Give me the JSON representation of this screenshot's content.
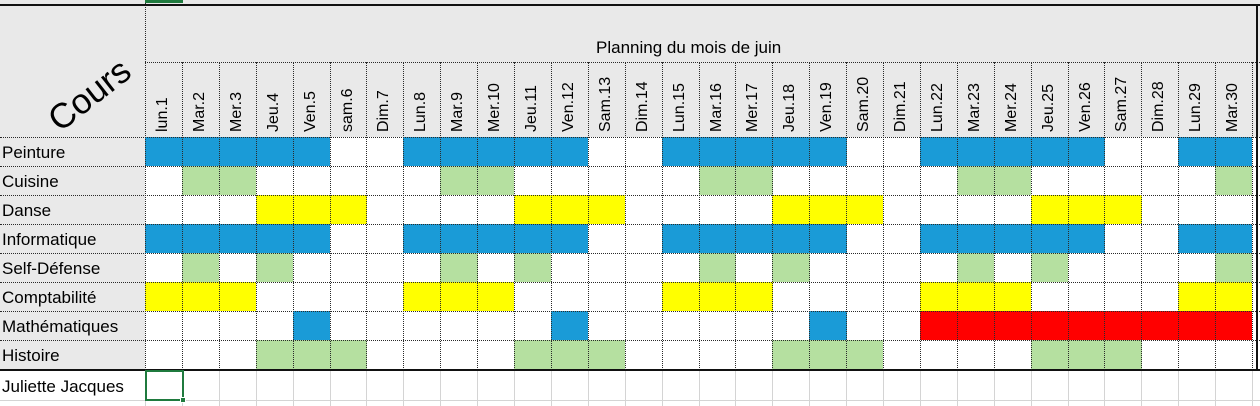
{
  "sheet": {
    "corner_label": "Cours",
    "planning_title": "Planning du mois de juin",
    "footer_name": "Juliette Jacques",
    "days": [
      "lun.1",
      "Mar.2",
      "Mer.3",
      "Jeu.4",
      "Ven.5",
      "sam.6",
      "Dim.7",
      "Lun.8",
      "Mar.9",
      "Mer.10",
      "Jeu.11",
      "Ven.12",
      "Sam.13",
      "Dim.14",
      "Lun.15",
      "Mar.16",
      "Mer.17",
      "Jeu.18",
      "Ven.19",
      "Sam.20",
      "Dim.21",
      "Lun.22",
      "Mar.23",
      "Mer.24",
      "Jeu.25",
      "Ven.26",
      "Sam.27",
      "Dim.28",
      "Lun.29",
      "Mar.30"
    ],
    "colors": {
      "B": "#1a9bd7",
      "G": "#b5e0a0",
      "Y": "#ffff00",
      "R": "#ff0000",
      "_": "#ffffff"
    },
    "rows": [
      {
        "name": "Peinture",
        "fill": "BBBBB__BBBBB__BBBBB__BBBBB__BB"
      },
      {
        "name": "Cuisine",
        "fill": "_GG_____GG_____GG_____GG_____G"
      },
      {
        "name": "Danse",
        "fill": "___YYY____YYY____YYY____YYY___"
      },
      {
        "name": "Informatique",
        "fill": "BBBBB__BBBBB__BBBBB__BBBBB__BB"
      },
      {
        "name": "Self-Défense",
        "fill": "_G_G____G_G____G_G____G_G____G"
      },
      {
        "name": "Comptabilité",
        "fill": "YYY____YYY____YYY____YYY____YY"
      },
      {
        "name": "Mathématiques",
        "fill": "____B______B______B__RRRRRRRRR"
      },
      {
        "name": "Histoire",
        "fill": "___GGG____GGG____GGG____GGG___"
      }
    ]
  }
}
